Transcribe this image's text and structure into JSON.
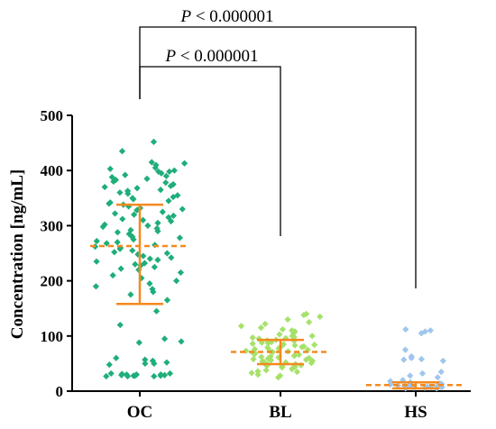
{
  "chart_data": {
    "type": "scatter",
    "ylabel": "Concentration [ng/mL]",
    "xlabel": "",
    "ylim": [
      0,
      500
    ],
    "yticks": [
      0,
      100,
      200,
      300,
      400,
      500
    ],
    "categories": [
      "OC",
      "BL",
      "HS"
    ],
    "colors": {
      "OC": "#1fae7a",
      "BL": "#a6e26a",
      "HS": "#9fc6ee",
      "summary": "#f5891f",
      "brackets": "#000000"
    },
    "groups": [
      {
        "name": "OC",
        "marker": "diamond",
        "mean": 263,
        "sd_low": 158,
        "sd_high": 338,
        "values": [
          452,
          435,
          415,
          413,
          410,
          405,
          403,
          400,
          398,
          398,
          395,
          392,
          390,
          388,
          385,
          383,
          380,
          378,
          375,
          372,
          370,
          368,
          365,
          363,
          360,
          358,
          355,
          352,
          350,
          348,
          345,
          342,
          340,
          338,
          335,
          332,
          330,
          328,
          325,
          322,
          320,
          318,
          315,
          312,
          310,
          308,
          305,
          302,
          300,
          298,
          295,
          292,
          290,
          288,
          285,
          282,
          280,
          278,
          275,
          272,
          270,
          268,
          265,
          262,
          260,
          258,
          255,
          252,
          250,
          248,
          245,
          242,
          240,
          238,
          235,
          232,
          230,
          228,
          225,
          222,
          220,
          215,
          210,
          205,
          200,
          195,
          190,
          185,
          180,
          175,
          165,
          145,
          120,
          95,
          90,
          88,
          60,
          57,
          55,
          52,
          50,
          50,
          48,
          32,
          32,
          31,
          30,
          30,
          30,
          29,
          29,
          28,
          28,
          28,
          27,
          27,
          27
        ]
      },
      {
        "name": "BL",
        "marker": "diamond",
        "mean": 71,
        "sd_low": 49,
        "sd_high": 93,
        "values": [
          140,
          138,
          135,
          130,
          125,
          122,
          118,
          115,
          112,
          110,
          108,
          105,
          103,
          100,
          100,
          98,
          97,
          96,
          95,
          94,
          93,
          92,
          91,
          90,
          89,
          88,
          87,
          86,
          85,
          84,
          83,
          82,
          81,
          80,
          79,
          78,
          77,
          76,
          75,
          74,
          73,
          72,
          71,
          70,
          69,
          68,
          67,
          66,
          65,
          64,
          63,
          62,
          61,
          60,
          59,
          58,
          57,
          56,
          55,
          54,
          53,
          52,
          51,
          50,
          49,
          48,
          47,
          46,
          45,
          44,
          43,
          42,
          40,
          38,
          36,
          35,
          33,
          30,
          28,
          25
        ]
      },
      {
        "name": "HS",
        "marker": "diamond",
        "mean": 11,
        "sd_low": 5,
        "sd_high": 16,
        "values": [
          112,
          110,
          108,
          105,
          75,
          63,
          60,
          58,
          57,
          55,
          35,
          32,
          28,
          25,
          20,
          18,
          16,
          15,
          14,
          13,
          12,
          11,
          10,
          10,
          9,
          9,
          8,
          8,
          7,
          7,
          6,
          6,
          5,
          5
        ]
      }
    ],
    "annotations": [
      {
        "text": "P < 0.000001",
        "from": "OC",
        "to": "BL"
      },
      {
        "text": "P < 0.000001",
        "from": "OC",
        "to": "HS"
      }
    ]
  }
}
